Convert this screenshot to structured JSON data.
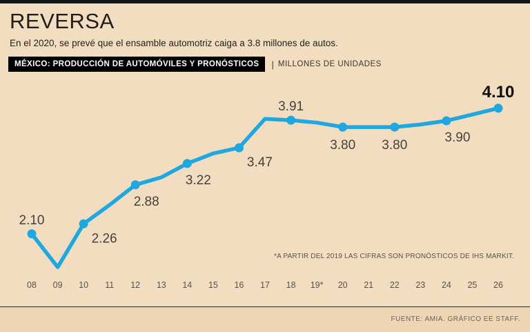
{
  "page": {
    "title": "REVERSA",
    "subtitle": "En el 2020, se prevé que el ensamble automotriz caiga a 3.8 millones de autos."
  },
  "chart_header": {
    "title": "MÉXICO: PRODUCCIÓN DE AUTOMÓVILES Y PRONÓSTICOS",
    "separator": "|",
    "units": "MILLONES DE UNIDADES"
  },
  "chart_data": {
    "type": "line",
    "title": "MÉXICO: PRODUCCIÓN DE AUTOMÓVILES Y PRONÓSTICOS",
    "units": "MILLONES DE UNIDADES",
    "categories": [
      "08",
      "09",
      "10",
      "11",
      "12",
      "13",
      "14",
      "15",
      "16",
      "17",
      "18",
      "19*",
      "20",
      "21",
      "22",
      "23",
      "24",
      "25",
      "26"
    ],
    "values": [
      2.1,
      1.57,
      2.26,
      2.56,
      2.88,
      3.0,
      3.22,
      3.38,
      3.47,
      3.93,
      3.91,
      3.87,
      3.8,
      3.8,
      3.8,
      3.84,
      3.9,
      4.0,
      4.1
    ],
    "ylim": [
      1.45,
      4.35
    ],
    "grid": false,
    "legend": false,
    "line_color": "#1fa8e0",
    "marker_indices": [
      0,
      2,
      4,
      6,
      8,
      10,
      12,
      14,
      16,
      18
    ],
    "labeled_points": [
      {
        "index": 0,
        "label": "2.10",
        "pos": "above"
      },
      {
        "index": 2,
        "label": "2.26",
        "pos": "below-right"
      },
      {
        "index": 4,
        "label": "2.88",
        "pos": "below"
      },
      {
        "index": 6,
        "label": "3.22",
        "pos": "below"
      },
      {
        "index": 8,
        "label": "3.47",
        "pos": "below-right"
      },
      {
        "index": 10,
        "label": "3.91",
        "pos": "above"
      },
      {
        "index": 12,
        "label": "3.80",
        "pos": "below-center"
      },
      {
        "index": 14,
        "label": "3.80",
        "pos": "below-center"
      },
      {
        "index": 16,
        "label": "3.90",
        "pos": "below"
      },
      {
        "index": 18,
        "label": "4.10",
        "pos": "above",
        "emphasis": true
      }
    ],
    "footnote": "*A PARTIR DEL 2019 LAS CIFRAS SON PRONÓSTICOS DE IHS MARKIT."
  },
  "footer": {
    "source": "FUENTE: AMIA. GRÁFICO EE STAFF."
  },
  "colors": {
    "background": "#f3ddc0",
    "footer_background": "#eed6b5",
    "bar_background": "#000000",
    "line": "#1fa8e0"
  }
}
